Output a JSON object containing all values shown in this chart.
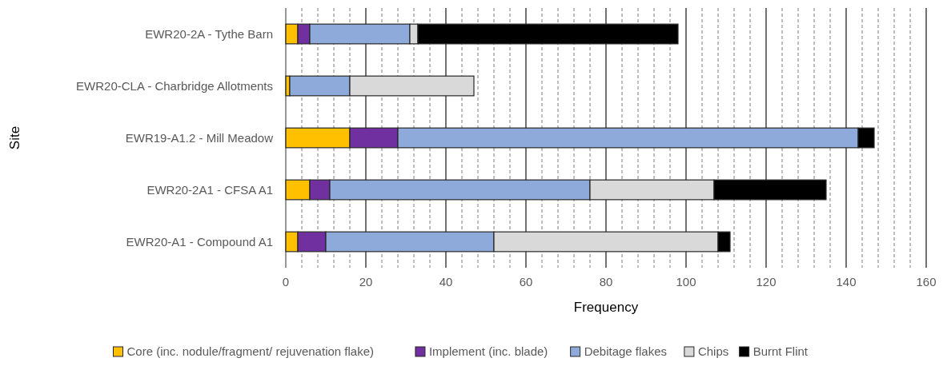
{
  "chart_data": {
    "type": "bar",
    "orientation": "horizontal",
    "stacked": true,
    "xlabel": "Frequency",
    "ylabel": "Site",
    "categories": [
      "EWR20-2A - Tythe Barn",
      "EWR20-CLA - Charbridge Allotments",
      "EWR19-A1.2 - Mill Meadow",
      "EWR20-2A1 - CFSA A1",
      "EWR20-A1 - Compound A1"
    ],
    "series": [
      {
        "name": "Core (inc. nodule/fragment/ rejuvenation flake)",
        "color": "#ffc000",
        "values": [
          3,
          1,
          16,
          6,
          3
        ]
      },
      {
        "name": "Implement (inc. blade)",
        "color": "#7030a0",
        "values": [
          3,
          0,
          12,
          5,
          7
        ]
      },
      {
        "name": "Debitage flakes",
        "color": "#8eaadb",
        "values": [
          25,
          15,
          115,
          65,
          42
        ]
      },
      {
        "name": "Chips",
        "color": "#d9d9d9",
        "values": [
          2,
          31,
          0,
          31,
          56
        ]
      },
      {
        "name": "Burnt Flint",
        "color": "#000000",
        "values": [
          65,
          0,
          4,
          28,
          3
        ]
      }
    ],
    "xlim": [
      0,
      160
    ],
    "xticks": [
      0,
      20,
      40,
      60,
      80,
      100,
      120,
      140,
      160
    ],
    "grid": "x",
    "legend": "bottom"
  }
}
